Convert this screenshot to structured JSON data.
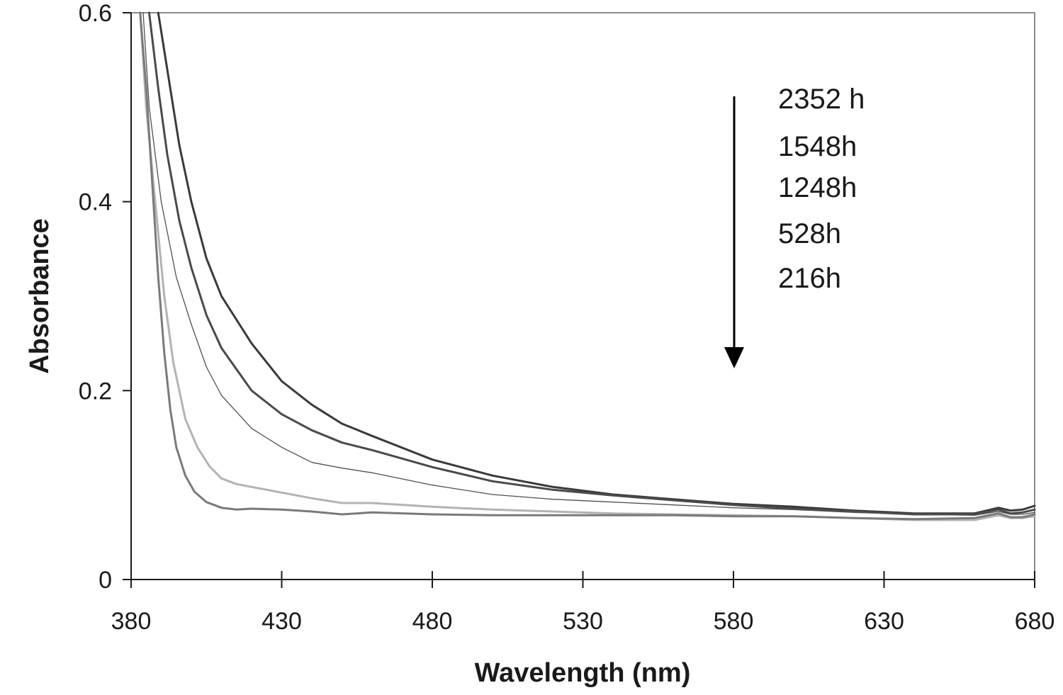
{
  "chart_data": {
    "type": "line",
    "title": "",
    "xlabel": "Wavelength (nm)",
    "ylabel": "Absorbance",
    "xlim": [
      380,
      680
    ],
    "ylim": [
      0,
      0.6
    ],
    "x_ticks": [
      380,
      430,
      480,
      530,
      580,
      630,
      680
    ],
    "x_tick_labels": [
      "380",
      "430",
      "480",
      "530",
      "580",
      "630",
      "680"
    ],
    "y_ticks": [
      0,
      0.2,
      0.4,
      0.6
    ],
    "y_tick_labels": [
      "0",
      "0.2",
      "0.4",
      "0.6"
    ],
    "grid": false,
    "legend_position": "top-right",
    "annotation": "downward arrow indicating decreasing exposure time",
    "series": [
      {
        "name": "2352 h",
        "color": "#3a3a3a",
        "stroke_width": 3,
        "x": [
          389,
          392,
          396,
          400,
          405,
          410,
          420,
          430,
          440,
          450,
          460,
          480,
          500,
          520,
          540,
          560,
          580,
          600,
          620,
          640,
          660,
          668,
          672,
          676,
          680
        ],
        "y": [
          0.6,
          0.54,
          0.46,
          0.4,
          0.34,
          0.3,
          0.25,
          0.21,
          0.185,
          0.165,
          0.152,
          0.127,
          0.11,
          0.098,
          0.09,
          0.085,
          0.08,
          0.077,
          0.073,
          0.07,
          0.07,
          0.076,
          0.073,
          0.074,
          0.078
        ]
      },
      {
        "name": "1548h",
        "color": "#4a4a4a",
        "stroke_width": 3,
        "x": [
          386,
          389,
          392,
          396,
          400,
          405,
          410,
          420,
          430,
          440,
          450,
          460,
          480,
          500,
          520,
          540,
          560,
          580,
          600,
          620,
          640,
          660,
          668,
          672,
          676,
          680
        ],
        "y": [
          0.6,
          0.52,
          0.45,
          0.38,
          0.33,
          0.28,
          0.245,
          0.2,
          0.175,
          0.158,
          0.145,
          0.137,
          0.119,
          0.104,
          0.095,
          0.089,
          0.084,
          0.079,
          0.075,
          0.072,
          0.069,
          0.069,
          0.074,
          0.07,
          0.071,
          0.074
        ]
      },
      {
        "name": "1248h",
        "color": "#505050",
        "stroke_width": 1.3,
        "x": [
          384,
          386,
          390,
          395,
          400,
          405,
          410,
          420,
          430,
          440,
          450,
          460,
          480,
          500,
          520,
          540,
          560,
          580,
          600,
          620,
          640,
          660,
          668,
          672,
          676,
          680
        ],
        "y": [
          0.6,
          0.5,
          0.4,
          0.32,
          0.27,
          0.225,
          0.195,
          0.16,
          0.14,
          0.124,
          0.118,
          0.113,
          0.1,
          0.09,
          0.085,
          0.082,
          0.079,
          0.076,
          0.074,
          0.071,
          0.069,
          0.068,
          0.072,
          0.069,
          0.069,
          0.071
        ]
      },
      {
        "name": "528h",
        "color": "#b3b3b3",
        "stroke_width": 3,
        "x": [
          383,
          385,
          388,
          391,
          394,
          398,
          402,
          406,
          410,
          415,
          420,
          430,
          440,
          450,
          460,
          480,
          500,
          520,
          540,
          560,
          580,
          600,
          620,
          640,
          660,
          668,
          672,
          676,
          680
        ],
        "y": [
          0.6,
          0.5,
          0.4,
          0.3,
          0.23,
          0.17,
          0.14,
          0.12,
          0.107,
          0.101,
          0.098,
          0.092,
          0.086,
          0.081,
          0.081,
          0.077,
          0.074,
          0.072,
          0.07,
          0.069,
          0.068,
          0.067,
          0.065,
          0.063,
          0.063,
          0.068,
          0.065,
          0.065,
          0.067
        ]
      },
      {
        "name": "216h",
        "color": "#7a7a7a",
        "stroke_width": 3,
        "x": [
          383,
          385,
          387,
          389,
          391,
          393,
          395,
          398,
          401,
          405,
          410,
          415,
          420,
          430,
          440,
          450,
          460,
          480,
          500,
          520,
          540,
          560,
          580,
          600,
          620,
          640,
          660,
          668,
          672,
          676,
          680
        ],
        "y": [
          0.6,
          0.52,
          0.42,
          0.32,
          0.24,
          0.18,
          0.14,
          0.11,
          0.093,
          0.082,
          0.076,
          0.074,
          0.075,
          0.074,
          0.072,
          0.069,
          0.071,
          0.069,
          0.068,
          0.068,
          0.068,
          0.068,
          0.067,
          0.067,
          0.065,
          0.064,
          0.065,
          0.07,
          0.066,
          0.066,
          0.069
        ]
      }
    ]
  }
}
